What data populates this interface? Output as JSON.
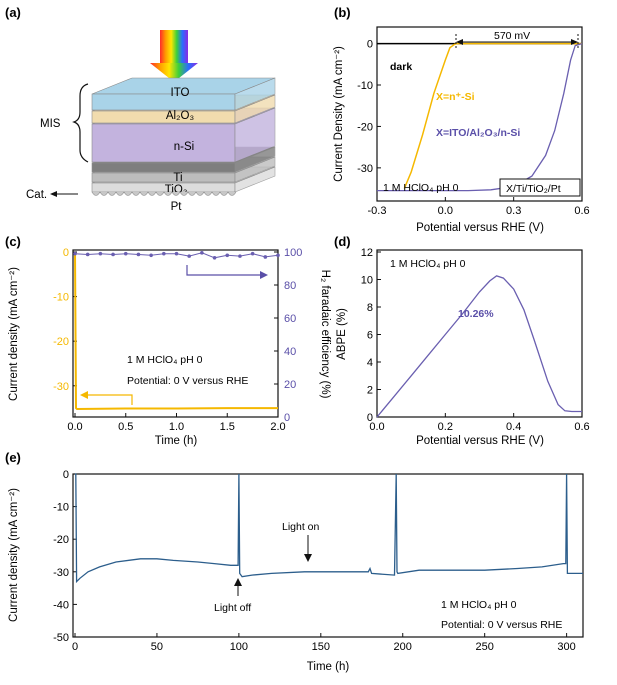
{
  "panels": {
    "a": {
      "label": "(a)",
      "layers": [
        {
          "text": "ITO",
          "color": "#a9d3e8"
        },
        {
          "text": "Al₂O₃",
          "color": "#f1dcae"
        },
        {
          "text": "n-Si",
          "color": "#c3b3de"
        },
        {
          "text": "Ti",
          "color": "#7e7e7e"
        },
        {
          "text": "TiO₂",
          "color": "#bdbdbd"
        },
        {
          "text": "Pt",
          "color": "#dcdcdc"
        }
      ],
      "mis_label": "MIS",
      "cat_label": "Cat."
    },
    "b": {
      "label": "(b)",
      "dark_label": "dark",
      "gap_label": "570 mV",
      "series_nsi_label": "X=n⁺-Si",
      "series_mis_label": "X=ITO/Al₂O₃/n-Si",
      "electrolyte": "1 M HClO₄  pH 0",
      "structure_box": "X/Ti/TiO₂/Pt",
      "xlabel": "Potential versus RHE (V)",
      "ylabel": "Current Density (mA cm⁻²)",
      "xticks": [
        "-0.3",
        "0.0",
        "0.3",
        "0.6"
      ],
      "yticks": [
        "0",
        "-10",
        "-20",
        "-30"
      ]
    },
    "c": {
      "label": "(c)",
      "xlabel": "Time (h)",
      "ylabel": "Current density (mA cm⁻²)",
      "ylabel2": "H₂ faradaic efficiency (%)",
      "xticks": [
        "0.0",
        "0.5",
        "1.0",
        "1.5",
        "2.0"
      ],
      "yticks": [
        "0",
        "-10",
        "-20",
        "-30"
      ],
      "yticks2": [
        "100",
        "80",
        "60",
        "40",
        "20",
        "0"
      ],
      "note1": "1 M HClO₄  pH 0",
      "note2": "Potential: 0 V versus RHE"
    },
    "d": {
      "label": "(d)",
      "xlabel": "Potential versus RHE (V)",
      "ylabel": "ABPE (%)",
      "xticks": [
        "0.0",
        "0.2",
        "0.4",
        "0.6"
      ],
      "yticks": [
        "0",
        "2",
        "4",
        "6",
        "8",
        "10",
        "12"
      ],
      "note": "1 M HClO₄  pH 0",
      "peak_label": "10.26%"
    },
    "e": {
      "label": "(e)",
      "xlabel": "Time (h)",
      "ylabel": "Current density (mA cm⁻²)",
      "xticks": [
        "0",
        "50",
        "100",
        "150",
        "200",
        "250",
        "300"
      ],
      "yticks": [
        "0",
        "-10",
        "-20",
        "-30",
        "-40",
        "-50"
      ],
      "light_off": "Light off",
      "light_on": "Light on",
      "note1": "1 M HClO₄  pH 0",
      "note2": "Potential: 0 V versus RHE"
    }
  },
  "colors": {
    "yellow": "#f5b800",
    "purple": "#6a5fb0",
    "blue": "#2c5e8c"
  },
  "chart_data": [
    {
      "type": "line",
      "panel": "b",
      "xlim": [
        -0.3,
        0.6
      ],
      "ylim": [
        -38,
        4
      ],
      "series": [
        {
          "name": "X=n⁺-Si",
          "color": "#f5b800",
          "x": [
            -0.18,
            -0.15,
            -0.1,
            -0.05,
            0.0,
            0.02,
            0.04,
            0.05,
            0.6
          ],
          "y": [
            -35,
            -31,
            -22,
            -12,
            -4,
            -1,
            -0.2,
            0,
            0
          ]
        },
        {
          "name": "X=ITO/Al₂O₃/n-Si",
          "color": "#6a5fb0",
          "x": [
            -0.3,
            0.1,
            0.2,
            0.3,
            0.38,
            0.44,
            0.48,
            0.52,
            0.55,
            0.57,
            0.6
          ],
          "y": [
            -35.5,
            -35.5,
            -35.3,
            -34.5,
            -32,
            -27,
            -21,
            -12,
            -4,
            -0.5,
            0
          ]
        },
        {
          "name": "dark",
          "color": "#000000",
          "x": [
            -0.3,
            0.6
          ],
          "y": [
            0,
            0
          ]
        }
      ]
    },
    {
      "type": "line",
      "panel": "c",
      "xlim": [
        0,
        2
      ],
      "ylim": [
        -37,
        0
      ],
      "y2lim": [
        0,
        100
      ],
      "series": [
        {
          "name": "current",
          "color": "#f5b800",
          "x": [
            0,
            0.01,
            0.02,
            0.5,
            1.0,
            1.5,
            2.0
          ],
          "y": [
            0,
            -35,
            -35.2,
            -35.1,
            -35.1,
            -35.0,
            -35.0
          ]
        },
        {
          "name": "faradaic",
          "color": "#6a5fb0",
          "axis": "y2",
          "x": [
            0,
            0.125,
            0.25,
            0.375,
            0.5,
            0.625,
            0.75,
            0.875,
            1.0,
            1.125,
            1.25,
            1.375,
            1.5,
            1.625,
            1.75,
            1.875,
            2.0
          ],
          "y": [
            99,
            98.5,
            99,
            98.5,
            99,
            98.5,
            98,
            99,
            99,
            97.5,
            99.5,
            96.5,
            98,
            97.5,
            99,
            97,
            98
          ]
        }
      ]
    },
    {
      "type": "line",
      "panel": "d",
      "xlim": [
        0,
        0.6
      ],
      "ylim": [
        0,
        12
      ],
      "series": [
        {
          "name": "ABPE",
          "color": "#6a5fb0",
          "x": [
            0,
            0.05,
            0.1,
            0.15,
            0.2,
            0.25,
            0.3,
            0.33,
            0.35,
            0.37,
            0.4,
            0.43,
            0.46,
            0.5,
            0.53,
            0.55,
            0.57,
            0.6
          ],
          "y": [
            0,
            1.5,
            3.0,
            4.5,
            6.0,
            7.5,
            9.1,
            9.9,
            10.26,
            10.1,
            9.3,
            7.8,
            5.6,
            2.6,
            0.9,
            0.45,
            0.4,
            0.4
          ]
        }
      ]
    },
    {
      "type": "line",
      "panel": "e",
      "xlim": [
        0,
        310
      ],
      "ylim": [
        -50,
        0
      ],
      "series": [
        {
          "name": "stability",
          "color": "#2c5e8c",
          "x": [
            0,
            0.5,
            1,
            3,
            8,
            15,
            25,
            40,
            50,
            60,
            75,
            85,
            95,
            99.5,
            100,
            100.5,
            102,
            108,
            120,
            140,
            160,
            179,
            180,
            181,
            195,
            196,
            196.5,
            197,
            210,
            230,
            250,
            270,
            285,
            298,
            299.5,
            300,
            300.5,
            301,
            310
          ],
          "y": [
            0,
            0,
            -33,
            -32,
            -30,
            -28.5,
            -27,
            -26,
            -26,
            -26.5,
            -27,
            -27.5,
            -28,
            -28,
            0,
            -30.5,
            -31.5,
            -31,
            -30.5,
            -30,
            -30,
            -30,
            -29,
            -30.5,
            -31,
            0,
            -30,
            -30.5,
            -29.5,
            -29.5,
            -29.5,
            -29,
            -28.5,
            -27.5,
            -27.5,
            0,
            -30.5,
            -30.5,
            -30.5
          ]
        }
      ]
    }
  ]
}
